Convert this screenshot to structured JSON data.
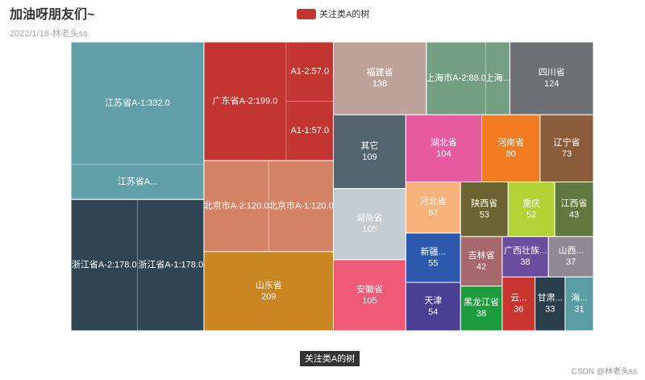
{
  "chart_data": {
    "type": "treemap",
    "title": "加油呀朋友们~",
    "subtitle": "2022/1/18-林老头ss",
    "series_name": "关注类A的树",
    "legend_color": "#c23531",
    "watermark": "CSDN @林老头ss",
    "nodes": [
      {
        "color": "#c23531",
        "children": [
          {
            "label": "广东省A-2:199.0",
            "value": 199
          },
          {
            "label": "A1-2:57.0",
            "value": 57
          },
          {
            "label": "A1-1:57.0",
            "value": 57
          }
        ]
      },
      {
        "color": "#d48265",
        "children": [
          {
            "label": "北京市A-2:120.0",
            "value": 120
          },
          {
            "label": "北京市A-1:120.0",
            "value": 120
          }
        ]
      },
      {
        "color": "#2f4554",
        "children": [
          {
            "label": "浙江省A-2:178.0",
            "value": 178
          },
          {
            "label": "浙江省A-1:178.0",
            "value": 178
          }
        ]
      },
      {
        "color": "#61a0a8",
        "children": [
          {
            "label": "江苏省A-1:332.0",
            "value": 332
          },
          {
            "label": "江苏省A...",
            "value": 95
          }
        ]
      },
      {
        "color": "#749f83",
        "children": [
          {
            "label": "上海市A-2:88.0",
            "value": 88
          },
          {
            "label": "上海...",
            "value": 36
          }
        ]
      },
      {
        "name": "山东省",
        "value": 209,
        "color": "#ca8622"
      },
      {
        "name": "福建省",
        "value": 138,
        "color": "#bda29a"
      },
      {
        "name": "四川省",
        "value": 124,
        "color": "#6e7074"
      },
      {
        "name": "其它",
        "value": 109,
        "color": "#546570"
      },
      {
        "name": "湖南省",
        "value": 105,
        "color": "#c4ccd3"
      },
      {
        "name": "安徽省",
        "value": 105,
        "color": "#ef5b76"
      },
      {
        "name": "湖北省",
        "value": 104,
        "color": "#e85a9f"
      },
      {
        "name": "河南省",
        "value": 80,
        "color": "#f37b21"
      },
      {
        "name": "辽宁省",
        "value": 73,
        "color": "#8b5c3c"
      },
      {
        "name": "河北省",
        "value": 57,
        "color": "#f8b27b"
      },
      {
        "name": "新疆...",
        "value": 55,
        "color": "#2c58ad"
      },
      {
        "name": "天津",
        "value": 54,
        "color": "#4a3e93"
      },
      {
        "name": "陕西省",
        "value": 53,
        "color": "#6b6332"
      },
      {
        "name": "重庆",
        "value": 52,
        "color": "#b3d236"
      },
      {
        "name": "江西省",
        "value": 43,
        "color": "#61783f"
      },
      {
        "name": "吉林省",
        "value": 42,
        "color": "#a7686b"
      },
      {
        "name": "黑龙江省",
        "value": 38,
        "color": "#1f9b3f"
      },
      {
        "name": "广西壮族...",
        "value": 38,
        "color": "#6a4d9c"
      },
      {
        "name": "山西...",
        "value": 37,
        "color": "#918896"
      },
      {
        "name": "云...",
        "value": 36,
        "color": "#c8352f"
      },
      {
        "name": "甘肃...",
        "value": 33,
        "color": "#2b3e4b"
      },
      {
        "name": "海...",
        "value": 31,
        "color": "#5b9da7"
      }
    ]
  }
}
